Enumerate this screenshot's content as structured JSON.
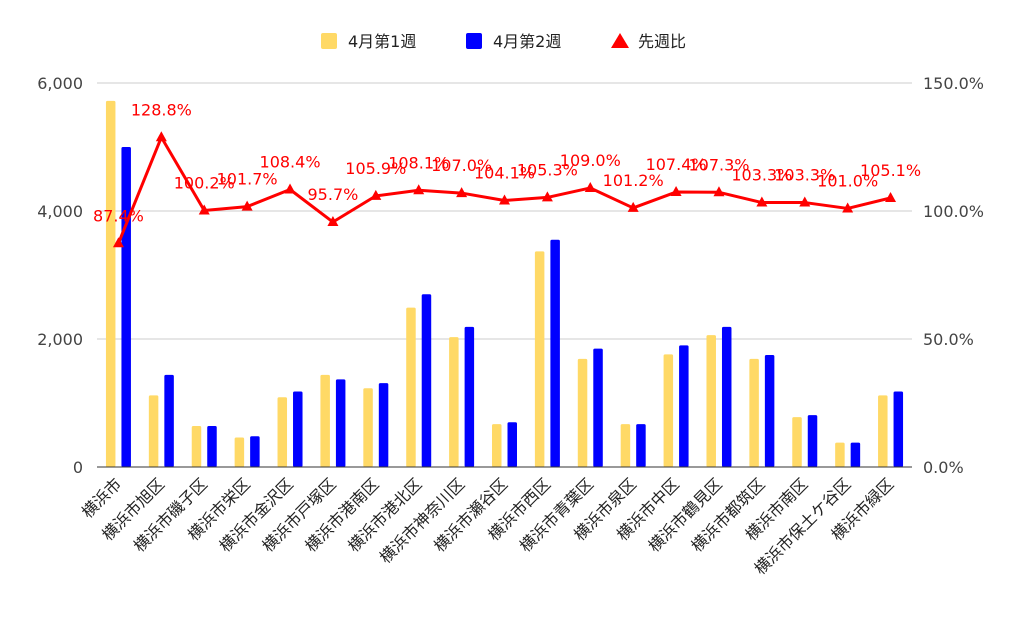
{
  "chart_data": {
    "type": "bar",
    "categories": [
      "横浜市",
      "横浜市旭区",
      "横浜市磯子区",
      "横浜市栄区",
      "横浜市金沢区",
      "横浜市戸塚区",
      "横浜市港南区",
      "横浜市港北区",
      "横浜市神奈川区",
      "横浜市瀬谷区",
      "横浜市西区",
      "横浜市青葉区",
      "横浜市泉区",
      "横浜市中区",
      "横浜市鶴見区",
      "横浜市都筑区",
      "横浜市南区",
      "横浜市保土ケ谷区",
      "横浜市緑区"
    ],
    "series": [
      {
        "name": "4月第1週",
        "kind": "bar",
        "axis": "left",
        "color": "#ffd966",
        "values": [
          5720,
          1120,
          640,
          460,
          1090,
          1440,
          1230,
          2490,
          2030,
          670,
          3370,
          1690,
          670,
          1760,
          2060,
          1690,
          780,
          380,
          1120
        ]
      },
      {
        "name": "4月第2週",
        "kind": "bar",
        "axis": "left",
        "color": "#0000ff",
        "values": [
          5000,
          1440,
          640,
          480,
          1180,
          1370,
          1310,
          2700,
          2190,
          700,
          3550,
          1850,
          670,
          1900,
          2190,
          1750,
          810,
          380,
          1180
        ]
      },
      {
        "name": "先週比",
        "kind": "line",
        "axis": "right",
        "color": "#ff0000",
        "values": [
          87.4,
          128.8,
          100.2,
          101.7,
          108.4,
          95.7,
          105.9,
          108.1,
          107.0,
          104.1,
          105.3,
          109.0,
          101.2,
          107.4,
          107.3,
          103.3,
          103.3,
          101.0,
          105.1
        ],
        "labels": [
          "87.4%",
          "128.8%",
          "100.2%",
          "101.7%",
          "108.4%",
          "95.7%",
          "105.9%",
          "108.1%",
          "107.0%",
          "104.1%",
          "105.3%",
          "109.0%",
          "101.2%",
          "107.4%",
          "107.3%",
          "103.3%",
          "103.3%",
          "101.0%",
          "105.1%"
        ]
      }
    ],
    "y_left": {
      "min": 0,
      "max": 6000,
      "ticks": [
        "0",
        "2,000",
        "4,000",
        "6,000"
      ],
      "tick_values": [
        0,
        2000,
        4000,
        6000
      ]
    },
    "y_right": {
      "min": 0,
      "max": 150,
      "ticks": [
        "0.0%",
        "50.0%",
        "100.0%",
        "150.0%"
      ],
      "tick_values": [
        0,
        50,
        100,
        150
      ]
    },
    "grid": true,
    "legend_position": "top-center",
    "title": "",
    "xlabel": "",
    "ylabel": ""
  }
}
